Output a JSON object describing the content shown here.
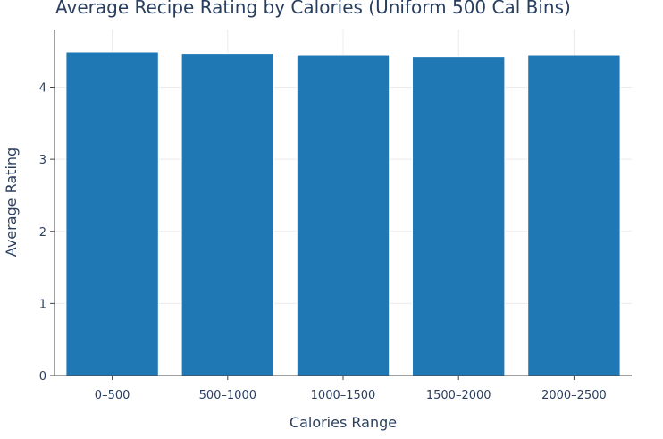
{
  "chart_data": {
    "type": "bar",
    "title": "Average Recipe Rating by Calories (Uniform 500 Cal Bins)",
    "xlabel": "Calories Range",
    "ylabel": "Average Rating",
    "categories": [
      "0–500",
      "500–1000",
      "1000–1500",
      "1500–2000",
      "2000–2500"
    ],
    "values": [
      4.49,
      4.47,
      4.44,
      4.42,
      4.44
    ],
    "ylim": [
      0,
      4.8
    ],
    "yticks": [
      0,
      1,
      2,
      3,
      4
    ],
    "grid": true,
    "colors": {
      "bar": "#1f77b4",
      "bar_outline": "#ffffff"
    }
  }
}
